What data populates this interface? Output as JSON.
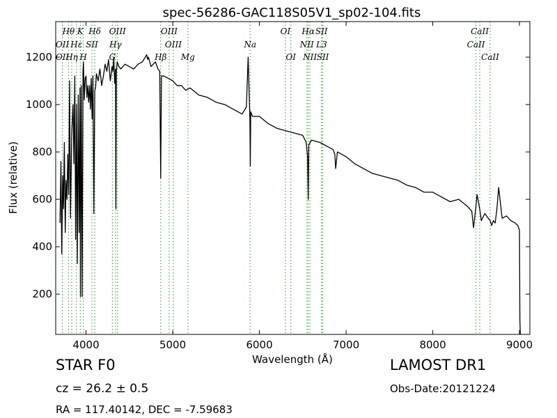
{
  "chart_data": {
    "type": "line",
    "title": "spec-56286-GAC118S05V1_sp02-104.fits",
    "xlabel": "Wavelength (Å)",
    "ylabel": "Flux (relative)",
    "xlim": [
      3650,
      9120
    ],
    "ylim": [
      30,
      1350
    ],
    "xticks": [
      4000,
      5000,
      6000,
      7000,
      8000,
      9000
    ],
    "yticks": [
      200,
      400,
      600,
      800,
      1000,
      1200
    ],
    "grid": false,
    "series_color": "#000000",
    "line_marker_color": "#44aa44",
    "series": [
      {
        "x": [
          3700,
          3710,
          3720,
          3730,
          3740,
          3750,
          3760,
          3770,
          3780,
          3790,
          3800,
          3810,
          3820,
          3835,
          3850,
          3860,
          3870,
          3880,
          3890,
          3900,
          3910,
          3920,
          3930,
          3935,
          3945,
          3955,
          3965,
          3970,
          3980,
          3990,
          4000,
          4010,
          4020,
          4030,
          4040,
          4050,
          4060,
          4070,
          4080,
          4090,
          4101,
          4110,
          4120,
          4140,
          4160,
          4180,
          4200,
          4220,
          4240,
          4260,
          4280,
          4300,
          4310,
          4320,
          4330,
          4340,
          4345,
          4350,
          4360,
          4380,
          4400,
          4450,
          4500,
          4550,
          4600,
          4650,
          4700,
          4710,
          4720,
          4750,
          4800,
          4830,
          4850,
          4861,
          4870,
          4900,
          4950,
          5000,
          5050,
          5100,
          5150,
          5200,
          5300,
          5400,
          5500,
          5600,
          5700,
          5800,
          5850,
          5870,
          5890,
          5895,
          5900,
          5920,
          6000,
          6100,
          6200,
          6300,
          6400,
          6500,
          6540,
          6555,
          6563,
          6570,
          6600,
          6700,
          6800,
          6850,
          6870,
          6880,
          6900,
          7000,
          7100,
          7200,
          7300,
          7400,
          7500,
          7600,
          7700,
          7800,
          7900,
          8000,
          8100,
          8200,
          8300,
          8400,
          8450,
          8470,
          8498,
          8510,
          8542,
          8560,
          8600,
          8640,
          8662,
          8680,
          8700,
          8720,
          8740,
          8760,
          8800,
          8850,
          8900,
          8950,
          8980,
          9000,
          9005,
          9010
        ],
        "y": [
          500,
          760,
          370,
          700,
          560,
          840,
          460,
          680,
          600,
          790,
          620,
          1100,
          520,
          880,
          1000,
          750,
          1120,
          430,
          1000,
          330,
          1040,
          460,
          1070,
          190,
          1080,
          190,
          1140,
          1180,
          1020,
          1110,
          1120,
          1030,
          1080,
          1010,
          1080,
          980,
          1110,
          940,
          1120,
          540,
          1060,
          1070,
          1130,
          1100,
          1150,
          1080,
          1120,
          1170,
          1140,
          1190,
          1100,
          1160,
          1140,
          1200,
          1090,
          1150,
          560,
          1140,
          1180,
          1160,
          1150,
          1170,
          1160,
          1150,
          1170,
          1180,
          1210,
          1190,
          1200,
          1160,
          1180,
          1150,
          1140,
          690,
          1120,
          1120,
          1110,
          1100,
          1080,
          1080,
          1060,
          1070,
          1040,
          1030,
          1010,
          1000,
          980,
          960,
          990,
          1200,
          940,
          740,
          970,
          950,
          950,
          920,
          900,
          890,
          880,
          870,
          840,
          780,
          600,
          830,
          850,
          840,
          820,
          810,
          790,
          730,
          800,
          780,
          750,
          730,
          710,
          700,
          690,
          680,
          660,
          650,
          630,
          630,
          610,
          590,
          600,
          570,
          550,
          480,
          570,
          620,
          560,
          510,
          540,
          520,
          510,
          490,
          510,
          500,
          560,
          650,
          520,
          530,
          510,
          500,
          490,
          470,
          90,
          30
        ]
      }
    ],
    "spectral_lines": [
      {
        "name": "Hθ",
        "wavelength": 3798,
        "row": 0
      },
      {
        "name": "K",
        "wavelength": 3934,
        "row": 0
      },
      {
        "name": "Hδ",
        "wavelength": 4101,
        "row": 0
      },
      {
        "name": "OIII",
        "wavelength": 4363,
        "row": 0
      },
      {
        "name": "OIII",
        "wavelength": 4959,
        "row": 0
      },
      {
        "name": "OI",
        "wavelength": 6300,
        "row": 0
      },
      {
        "name": "Hα",
        "wavelength": 6563,
        "row": 0
      },
      {
        "name": "SII",
        "wavelength": 6716,
        "row": 0
      },
      {
        "name": "CaII",
        "wavelength": 8542,
        "row": 0
      },
      {
        "name": "OII",
        "wavelength": 3727,
        "row": 1
      },
      {
        "name": "Hε",
        "wavelength": 3889,
        "row": 1
      },
      {
        "name": "SII",
        "wavelength": 4068,
        "row": 1
      },
      {
        "name": "Hγ",
        "wavelength": 4340,
        "row": 1
      },
      {
        "name": "OIII",
        "wavelength": 5007,
        "row": 1
      },
      {
        "name": "NII",
        "wavelength": 6548,
        "row": 1
      },
      {
        "name": "L3",
        "wavelength": 6718,
        "row": 1
      },
      {
        "name": "CaII",
        "wavelength": 8498,
        "row": 1
      },
      {
        "name": "OII",
        "wavelength": 3727,
        "row": 2
      },
      {
        "name": "Hη",
        "wavelength": 3835,
        "row": 2
      },
      {
        "name": "H",
        "wavelength": 3968,
        "row": 2
      },
      {
        "name": "G",
        "wavelength": 4304,
        "row": 2
      },
      {
        "name": "Hβ",
        "wavelength": 4861,
        "row": 2
      },
      {
        "name": "Mg",
        "wavelength": 5175,
        "row": 2
      },
      {
        "name": "Na",
        "wavelength": 5893,
        "row": 1
      },
      {
        "name": "OI",
        "wavelength": 6363,
        "row": 2
      },
      {
        "name": "NII",
        "wavelength": 6583,
        "row": 2
      },
      {
        "name": "SII",
        "wavelength": 6731,
        "row": 2
      },
      {
        "name": "CaII",
        "wavelength": 8662,
        "row": 2
      }
    ]
  },
  "info": {
    "class_label": "STAR   F0",
    "survey": "LAMOST DR1",
    "redshift": "cz = 26.2  ± 0.5",
    "obs_date": "Obs-Date:20121224",
    "coordinates": "RA = 117.40142, DEC = -7.59683"
  }
}
